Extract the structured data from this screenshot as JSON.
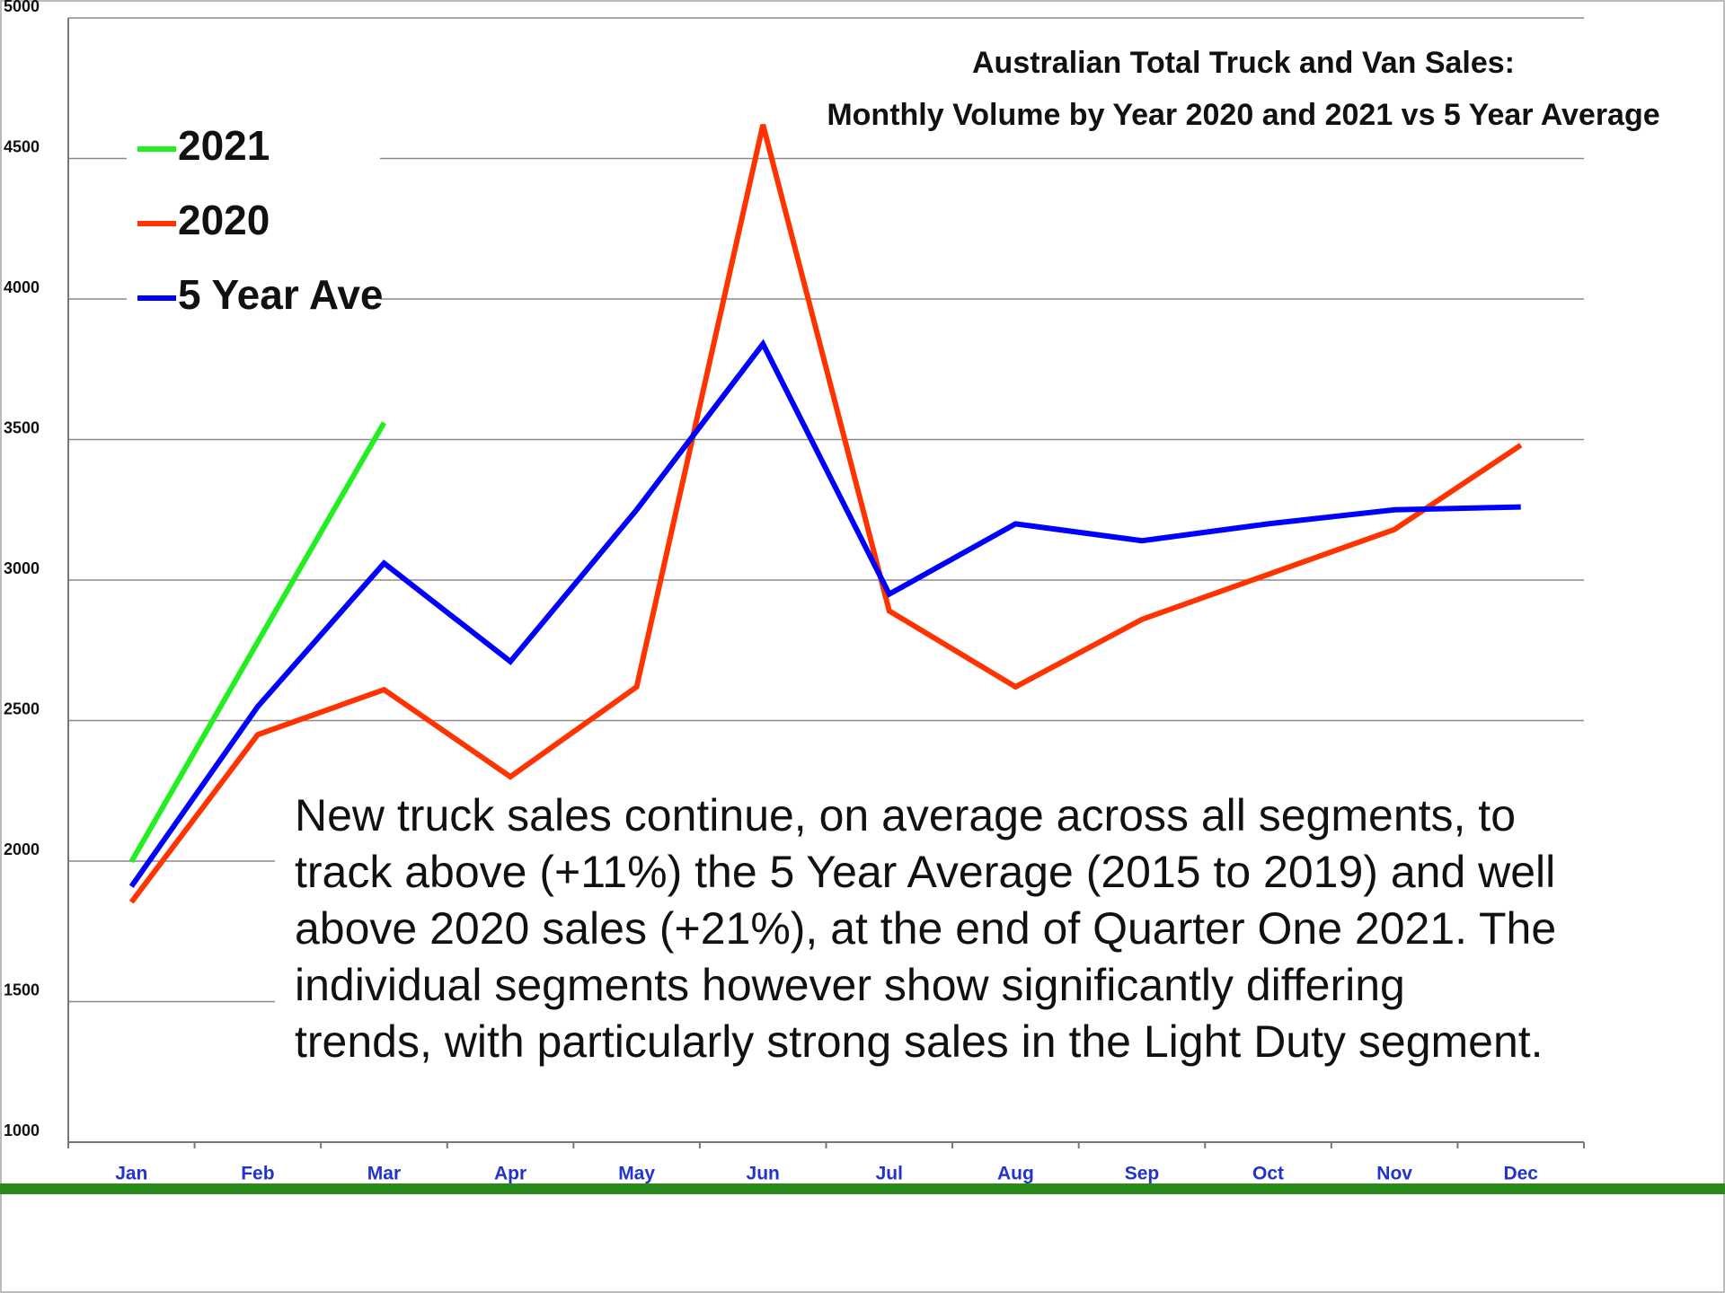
{
  "chart_data": {
    "type": "line",
    "title": [
      "Australian Total Truck and Van Sales:",
      "Monthly Volume by Year 2020 and 2021 vs 5 Year Average"
    ],
    "categories": [
      "Jan",
      "Feb",
      "Mar",
      "Apr",
      "May",
      "Jun",
      "Jul",
      "Aug",
      "Sep",
      "Oct",
      "Nov",
      "Dec"
    ],
    "series": [
      {
        "name": "2021",
        "color": "#22ee22",
        "values": [
          1998,
          2780,
          3560,
          null,
          null,
          null,
          null,
          null,
          null,
          null,
          null,
          null
        ]
      },
      {
        "name": "2020",
        "color": "#ff3300",
        "values": [
          1854,
          2450,
          2610,
          2300,
          2620,
          4620,
          2890,
          2620,
          2860,
          3020,
          3180,
          3480
        ]
      },
      {
        "name": "5 Year Ave",
        "color": "#0000ff",
        "values": [
          1910,
          2550,
          3060,
          2710,
          3250,
          3840,
          2950,
          3200,
          3140,
          3200,
          3250,
          3260
        ]
      }
    ],
    "ylim": [
      1000,
      5000
    ],
    "yticks": [
      1000,
      1500,
      2000,
      2500,
      3000,
      3500,
      4000,
      4500,
      5000
    ],
    "grid": true,
    "legend": "upper left",
    "annotation": [
      "New truck sales continue, on average across all segments, to",
      "track above (+11%) the 5 Year Average (2015 to 2019) and well",
      "above 2020 sales (+21%), at the end of Quarter One 2021. The",
      "individual segments however show significantly differing",
      "trends, with particularly strong sales in the Light Duty segment."
    ]
  }
}
